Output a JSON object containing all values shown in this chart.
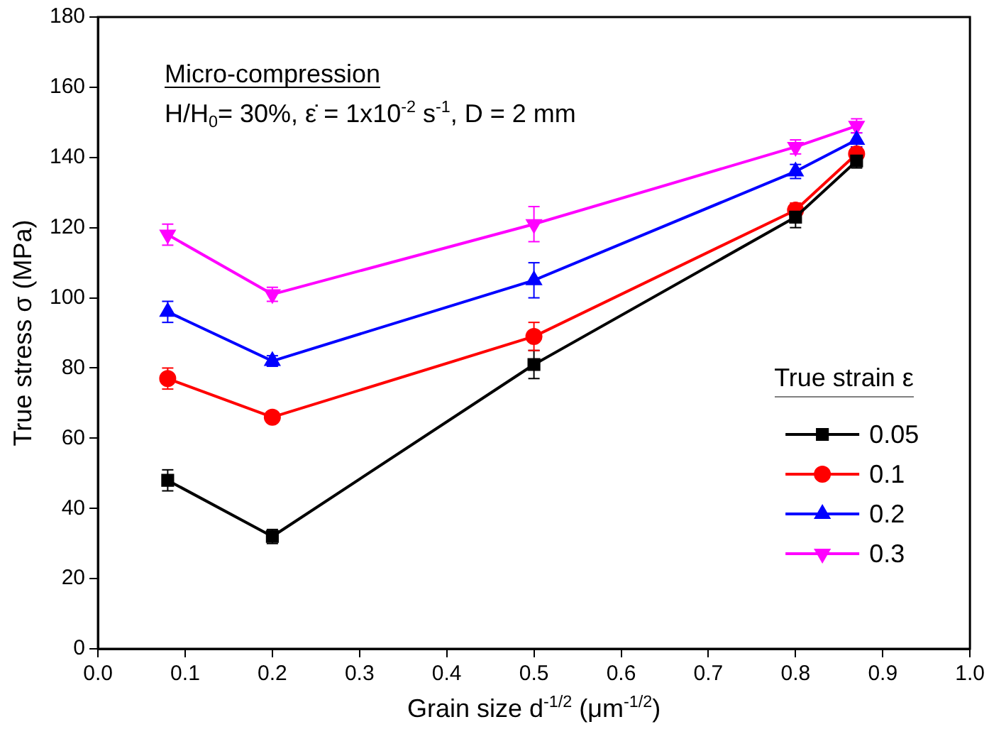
{
  "chart_data": {
    "type": "line",
    "xlabel": "Grain size d$^{-1/2}$ (μm$^{-1/2}$)",
    "ylabel": "True stress σ (MPa)",
    "legend_title": "True strain ε",
    "annotations": [
      "Micro-compression",
      "H/H$_{0}$= 30%, ε̇ = 1x10$^{-2}$ s$^{-1}$, D = 2 mm"
    ],
    "x": [
      0.08,
      0.2,
      0.5,
      0.8,
      0.87
    ],
    "series": [
      {
        "name": "0.05",
        "color": "#000000",
        "marker": "square",
        "values": [
          48,
          32,
          81,
          123,
          139
        ],
        "errors": [
          3,
          2,
          4,
          3,
          2
        ]
      },
      {
        "name": "0.1",
        "color": "#ff0000",
        "marker": "circle",
        "values": [
          77,
          66,
          89,
          125,
          141
        ],
        "errors": [
          3,
          1.5,
          4,
          2,
          2
        ]
      },
      {
        "name": "0.2",
        "color": "#0000ff",
        "marker": "triangle",
        "values": [
          96,
          82,
          105,
          136,
          145
        ],
        "errors": [
          3,
          1.5,
          5,
          2,
          2
        ]
      },
      {
        "name": "0.3",
        "color": "#ff00ff",
        "marker": "triangle-down",
        "values": [
          118,
          101,
          121,
          143,
          149
        ],
        "errors": [
          3,
          2,
          5,
          2,
          2
        ]
      }
    ],
    "xlim": [
      0.0,
      1.0
    ],
    "xticks": [
      {
        "value": 0,
        "label": "0.0"
      },
      0.1,
      0.2,
      0.3,
      0.4,
      0.5,
      0.6,
      0.7,
      0.8,
      0.9,
      {
        "value": 1,
        "label": "1.0"
      }
    ],
    "ylim": [
      0,
      180
    ],
    "yticks": [
      0,
      20,
      40,
      60,
      80,
      100,
      120,
      140,
      160,
      180
    ],
    "grid": false,
    "legend": "right",
    "line_style": "solid"
  }
}
